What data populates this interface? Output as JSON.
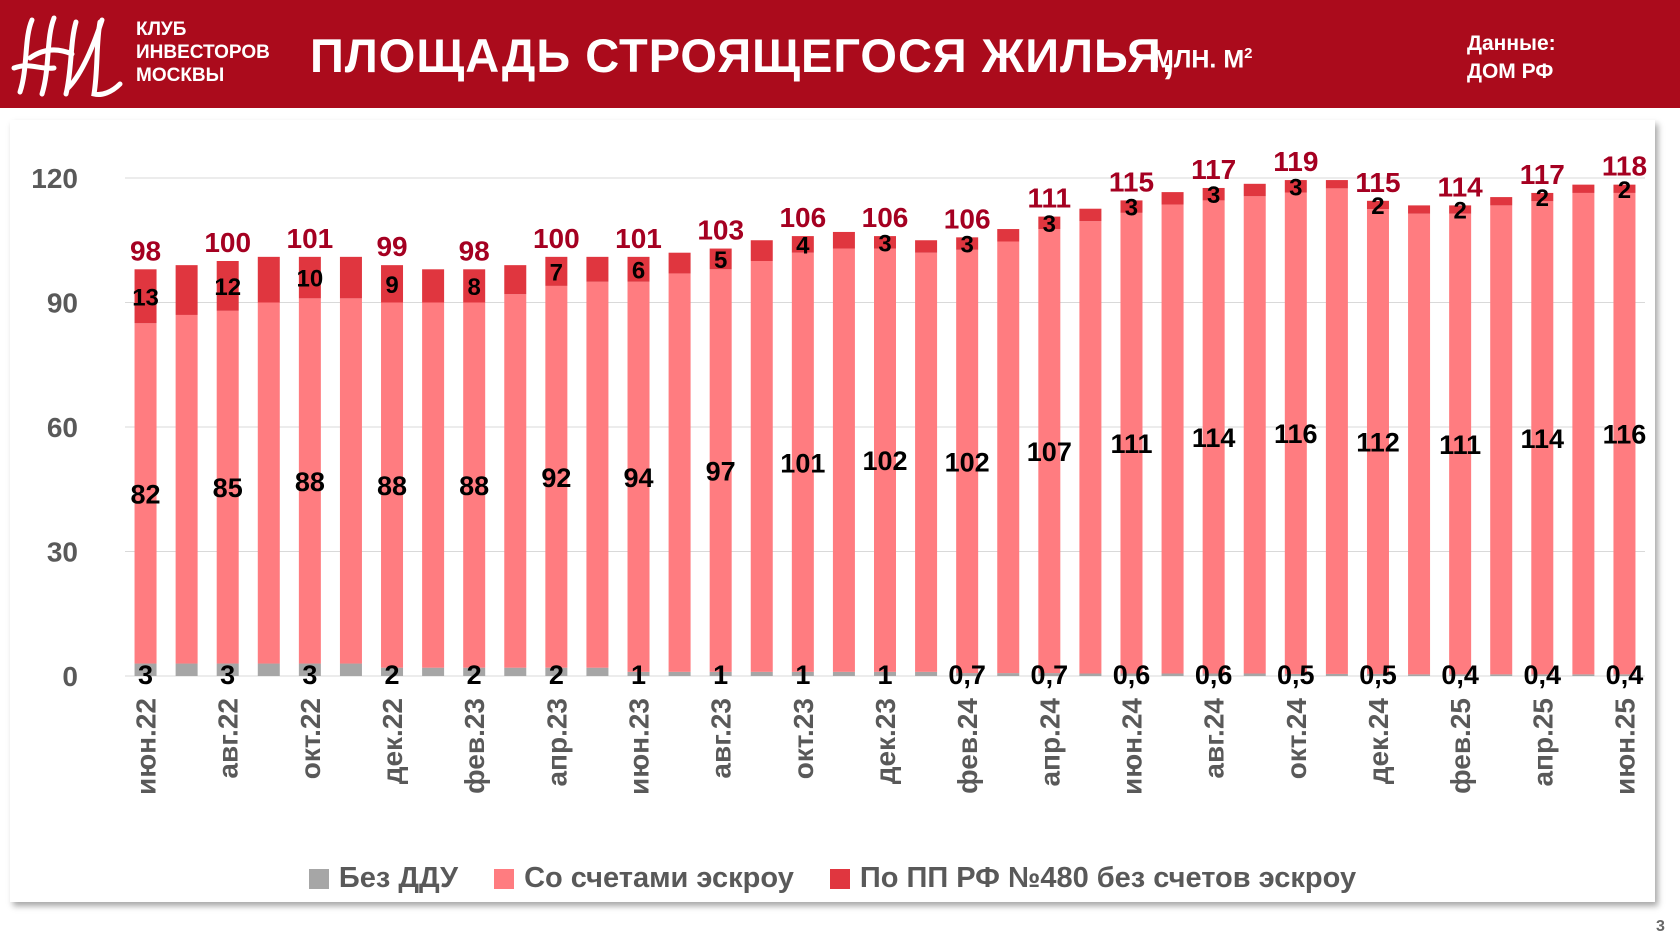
{
  "header": {
    "club_lines": [
      "КЛУБ",
      "ИНВЕСТОРОВ",
      "МОСКВЫ"
    ],
    "title": "ПЛОЩАДЬ СТРОЯЩЕГОСЯ ЖИЛЬЯ,",
    "unit": "МЛН. М",
    "unit_sup": "2",
    "source_label": "Данные:",
    "source_value": "ДОМ РФ"
  },
  "page_number": "3",
  "colors": {
    "header_bg": "#ab0b1c",
    "bez_ddu": "#a6a6a6",
    "escrow": "#ff7c80",
    "pp480": "#e0363f",
    "total_label": "#a50021",
    "axis_text": "#595959"
  },
  "chart_data": {
    "type": "bar",
    "stacked": true,
    "title": "ПЛОЩАДЬ СТРОЯЩЕГОСЯ ЖИЛЬЯ, МЛН. М²",
    "ylim": [
      0,
      120
    ],
    "yticks": [
      0,
      30,
      60,
      90,
      120
    ],
    "grid": true,
    "legend_position": "bottom",
    "categories": [
      "июн.22",
      "июл.22",
      "авг.22",
      "сен.22",
      "окт.22",
      "ноя.22",
      "дек.22",
      "янв.23",
      "фев.23",
      "мар.23",
      "апр.23",
      "май.23",
      "июн.23",
      "июл.23",
      "авг.23",
      "сен.23",
      "окт.23",
      "ноя.23",
      "дек.23",
      "янв.24",
      "фев.24",
      "мар.24",
      "апр.24",
      "май.24",
      "июн.24",
      "июл.24",
      "авг.24",
      "сен.24",
      "окт.24",
      "ноя.24",
      "дек.24",
      "янв.25",
      "фев.25",
      "мар.25",
      "апр.25",
      "май.25",
      "июн.25"
    ],
    "x_tick_labels": [
      "июн.22",
      "",
      "авг.22",
      "",
      "окт.22",
      "",
      "дек.22",
      "",
      "фев.23",
      "",
      "апр.23",
      "",
      "июн.23",
      "",
      "авг.23",
      "",
      "окт.23",
      "",
      "дек.23",
      "",
      "фев.24",
      "",
      "апр.24",
      "",
      "июн.24",
      "",
      "авг.24",
      "",
      "окт.24",
      "",
      "дек.24",
      "",
      "фев.25",
      "",
      "апр.25",
      "",
      "июн.25"
    ],
    "series": [
      {
        "name": "Без ДДУ",
        "values": [
          3,
          3,
          3,
          3,
          3,
          3,
          2,
          2,
          2,
          2,
          2,
          2,
          1,
          1,
          1,
          1,
          1,
          1,
          1,
          1,
          0.7,
          0.7,
          0.7,
          0.6,
          0.6,
          0.6,
          0.6,
          0.6,
          0.5,
          0.5,
          0.5,
          0.4,
          0.4,
          0.4,
          0.4,
          0.4,
          0.4
        ],
        "labels": [
          "3",
          "",
          "3",
          "",
          "3",
          "",
          "2",
          "",
          "2",
          "",
          "2",
          "",
          "1",
          "",
          "1",
          "",
          "1",
          "",
          "1",
          "",
          "0,7",
          "",
          "0,7",
          "",
          "0,6",
          "",
          "0,6",
          "",
          "0,5",
          "",
          "0,5",
          "",
          "0,4",
          "",
          "0,4",
          "",
          "0,4"
        ]
      },
      {
        "name": "Со счетами эскроу",
        "values": [
          82,
          84,
          85,
          87,
          88,
          88,
          88,
          88,
          88,
          90,
          92,
          93,
          94,
          96,
          97,
          99,
          101,
          102,
          102,
          101,
          102,
          104,
          107,
          109,
          111,
          113,
          114,
          115,
          116,
          117,
          112,
          111,
          111,
          113,
          114,
          116,
          116
        ],
        "labels": [
          "82",
          "",
          "85",
          "",
          "88",
          "",
          "88",
          "",
          "88",
          "",
          "92",
          "",
          "94",
          "",
          "97",
          "",
          "101",
          "",
          "102",
          "",
          "102",
          "",
          "107",
          "",
          "111",
          "",
          "114",
          "",
          "116",
          "",
          "112",
          "",
          "111",
          "",
          "114",
          "",
          "116"
        ]
      },
      {
        "name": "По ПП РФ №480 без счетов эскроу",
        "values": [
          13,
          12,
          12,
          11,
          10,
          10,
          9,
          8,
          8,
          7,
          7,
          6,
          6,
          5,
          5,
          5,
          4,
          4,
          3,
          3,
          3,
          3,
          3,
          3,
          3,
          3,
          3,
          3,
          3,
          2,
          2,
          2,
          2,
          2,
          2,
          2,
          2
        ],
        "labels": [
          "13",
          "",
          "12",
          "",
          "10",
          "",
          "9",
          "",
          "8",
          "",
          "7",
          "",
          "6",
          "",
          "5",
          "",
          "4",
          "",
          "3",
          "",
          "3",
          "",
          "3",
          "",
          "3",
          "",
          "3",
          "",
          "3",
          "",
          "2",
          "",
          "2",
          "",
          "2",
          "",
          "2"
        ]
      }
    ],
    "total_labels": [
      "98",
      "",
      "100",
      "",
      "101",
      "",
      "99",
      "",
      "98",
      "",
      "100",
      "",
      "101",
      "",
      "103",
      "",
      "106",
      "",
      "106",
      "",
      "106",
      "",
      "111",
      "",
      "115",
      "",
      "117",
      "",
      "119",
      "",
      "115",
      "",
      "114",
      "",
      "117",
      "",
      "118"
    ]
  }
}
